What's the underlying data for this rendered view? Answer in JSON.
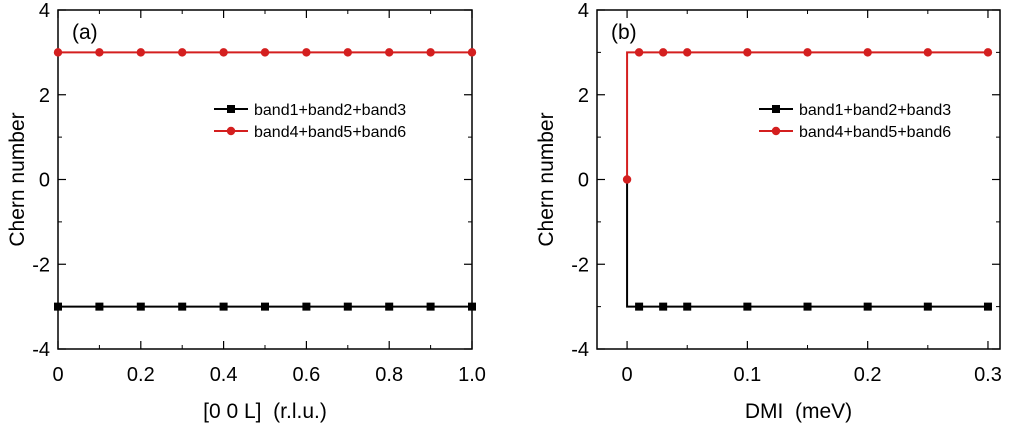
{
  "chart_data": [
    {
      "type": "line",
      "panel_label": "(a)",
      "xlabel": "[0 0 L]  (r.l.u.)",
      "ylabel": "Chern number",
      "xlim": [
        0,
        1.0
      ],
      "ylim": [
        -4,
        4
      ],
      "xticks": [
        0,
        0.2,
        0.4,
        0.6,
        0.8,
        1.0
      ],
      "xtick_labels": [
        "0",
        "0.2",
        "0.4",
        "0.6",
        "0.8",
        "1.0"
      ],
      "yticks": [
        4,
        2,
        0,
        -2,
        -4
      ],
      "ytick_labels": [
        "4",
        "2",
        "0",
        "-2",
        "-4"
      ],
      "legend_position": "top-right",
      "step": false,
      "series": [
        {
          "name": "band1+band2+band3",
          "color": "#000000",
          "marker": "square",
          "x": [
            0,
            0.1,
            0.2,
            0.3,
            0.4,
            0.5,
            0.6,
            0.7,
            0.8,
            0.9,
            1.0
          ],
          "y": [
            -3,
            -3,
            -3,
            -3,
            -3,
            -3,
            -3,
            -3,
            -3,
            -3,
            -3
          ]
        },
        {
          "name": "band4+band5+band6",
          "color": "#d41f1f",
          "marker": "circle",
          "x": [
            0,
            0.1,
            0.2,
            0.3,
            0.4,
            0.5,
            0.6,
            0.7,
            0.8,
            0.9,
            1.0
          ],
          "y": [
            3,
            3,
            3,
            3,
            3,
            3,
            3,
            3,
            3,
            3,
            3
          ]
        }
      ]
    },
    {
      "type": "line",
      "panel_label": "(b)",
      "xlabel": "DMI  (meV)",
      "ylabel": "Chern number",
      "xlim": [
        -0.025,
        0.31
      ],
      "ylim": [
        -4,
        4
      ],
      "xticks": [
        0,
        0.1,
        0.2,
        0.3
      ],
      "xtick_labels": [
        "0",
        "0.1",
        "0.2",
        "0.3"
      ],
      "yticks": [
        4,
        2,
        0,
        -2,
        -4
      ],
      "ytick_labels": [
        "4",
        "2",
        "0",
        "-2",
        "-4"
      ],
      "legend_position": "top-right",
      "step": true,
      "series": [
        {
          "name": "band1+band2+band3",
          "color": "#000000",
          "marker": "square",
          "x": [
            0.01,
            0.03,
            0.05,
            0.1,
            0.15,
            0.2,
            0.25,
            0.3
          ],
          "y": [
            -3,
            -3,
            -3,
            -3,
            -3,
            -3,
            -3,
            -3
          ]
        },
        {
          "name": "band4+band5+band6",
          "color": "#d41f1f",
          "marker": "circle",
          "x": [
            0,
            0.01,
            0.03,
            0.05,
            0.1,
            0.15,
            0.2,
            0.25,
            0.3
          ],
          "y": [
            0,
            3,
            3,
            3,
            3,
            3,
            3,
            3,
            3
          ]
        }
      ]
    }
  ]
}
